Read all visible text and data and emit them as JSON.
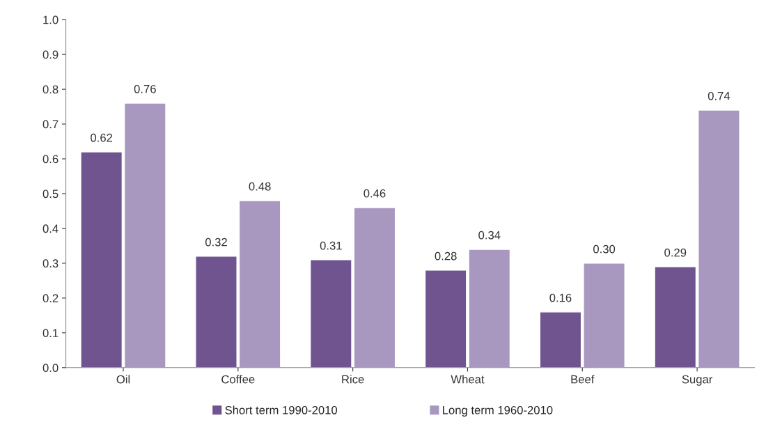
{
  "chart_data": {
    "type": "bar",
    "categories": [
      "Oil",
      "Coffee",
      "Rice",
      "Wheat",
      "Beef",
      "Sugar"
    ],
    "series": [
      {
        "name": "Short term 1990-2010",
        "color": "#6f5490",
        "values": [
          0.62,
          0.32,
          0.31,
          0.28,
          0.16,
          0.29
        ],
        "value_labels": [
          "0.62",
          "0.32",
          "0.31",
          "0.28",
          "0.16",
          "0.29"
        ]
      },
      {
        "name": "Long term 1960-2010",
        "color": "#a898c0",
        "values": [
          0.76,
          0.48,
          0.46,
          0.34,
          0.3,
          0.74
        ],
        "value_labels": [
          "0.76",
          "0.48",
          "0.46",
          "0.34",
          "0.30",
          "0.74"
        ]
      }
    ],
    "ylim": [
      0,
      1.0
    ],
    "yticks": [
      {
        "value": 0,
        "label": "0.0"
      },
      {
        "value": 0.1,
        "label": "0.1"
      },
      {
        "value": 0.2,
        "label": "0.2"
      },
      {
        "value": 0.3,
        "label": "0.3"
      },
      {
        "value": 0.4,
        "label": "0.4"
      },
      {
        "value": 0.5,
        "label": "0.5"
      },
      {
        "value": 0.6,
        "label": "0.6"
      },
      {
        "value": 0.7,
        "label": "0.7"
      },
      {
        "value": 0.8,
        "label": "0.8"
      },
      {
        "value": 0.9,
        "label": "0.9"
      },
      {
        "value": 1.0,
        "label": "1.0"
      }
    ],
    "grid": false,
    "legend": "bottom"
  }
}
